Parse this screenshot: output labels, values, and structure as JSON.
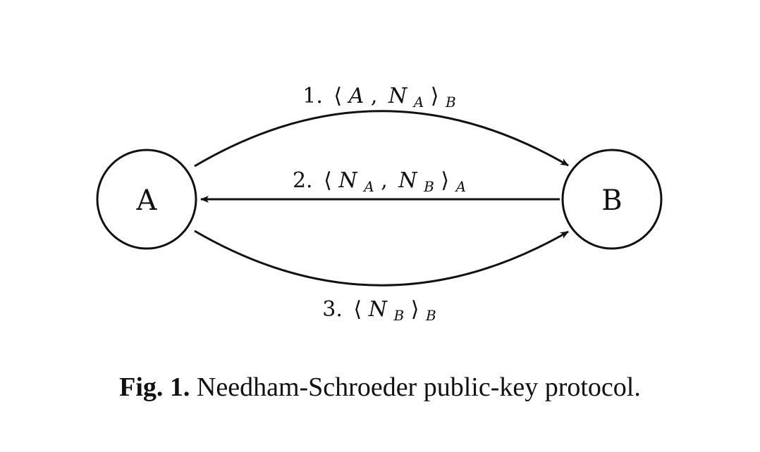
{
  "nodes": {
    "a": {
      "label": "A"
    },
    "b": {
      "label": "B"
    }
  },
  "messages": [
    {
      "number": "1.",
      "open": "⟨",
      "term1": "A",
      "sep": ",",
      "term2": "N",
      "term2_sub": "A",
      "close": "⟩",
      "key": "B"
    },
    {
      "number": "2.",
      "open": "⟨",
      "term1": "N",
      "term1_sub": "A",
      "sep": ",",
      "term2": "N",
      "term2_sub": "B",
      "close": "⟩",
      "key": "A"
    },
    {
      "number": "3.",
      "open": "⟨",
      "term1": "N",
      "term1_sub": "B",
      "close": "⟩",
      "key": "B"
    }
  ],
  "caption": {
    "prefix": "Fig. 1.",
    "text": " Needham-Schroeder public-key protocol."
  }
}
